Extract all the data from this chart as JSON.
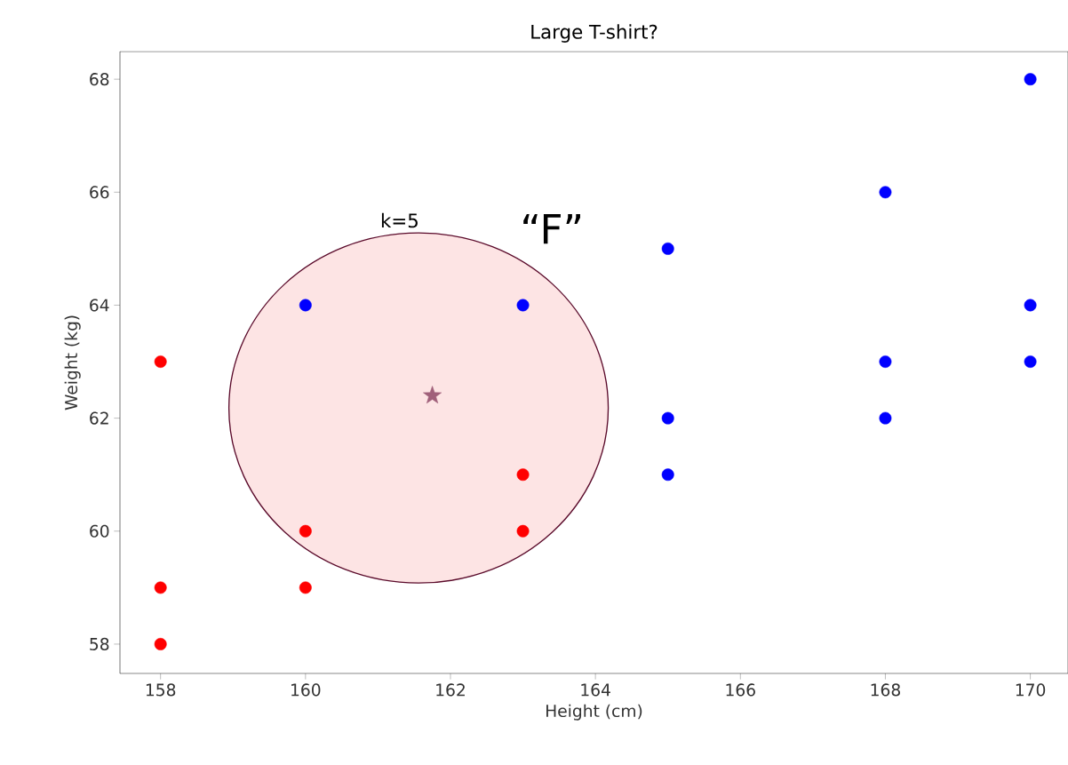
{
  "chart_data": {
    "type": "scatter",
    "title": "Large T-shirt?",
    "xlabel": "Height (cm)",
    "ylabel": "Weight (kg)",
    "xlim": [
      157.44,
      170.52
    ],
    "ylim": [
      57.48,
      68.49
    ],
    "xticks": [
      158,
      160,
      162,
      164,
      166,
      168,
      170
    ],
    "yticks": [
      58,
      60,
      62,
      64,
      66,
      68
    ],
    "grid": false,
    "series": [
      {
        "color": "#ff0000",
        "marker": "circle",
        "x": [
          158,
          158,
          158,
          160,
          160,
          163,
          163
        ],
        "values": [
          63,
          59,
          58,
          59,
          60,
          61,
          60
        ]
      },
      {
        "color": "#0000ff",
        "marker": "circle",
        "x": [
          160,
          163,
          165,
          165,
          165,
          168,
          168,
          168,
          170,
          170,
          170
        ],
        "values": [
          64,
          64,
          65,
          62,
          61,
          66,
          63,
          62,
          68,
          64,
          63
        ]
      },
      {
        "color": "#a0607a",
        "marker": "star",
        "x": [
          161.75
        ],
        "values": [
          62.4
        ]
      }
    ],
    "annotations": [
      "k=5",
      "“F”"
    ]
  }
}
